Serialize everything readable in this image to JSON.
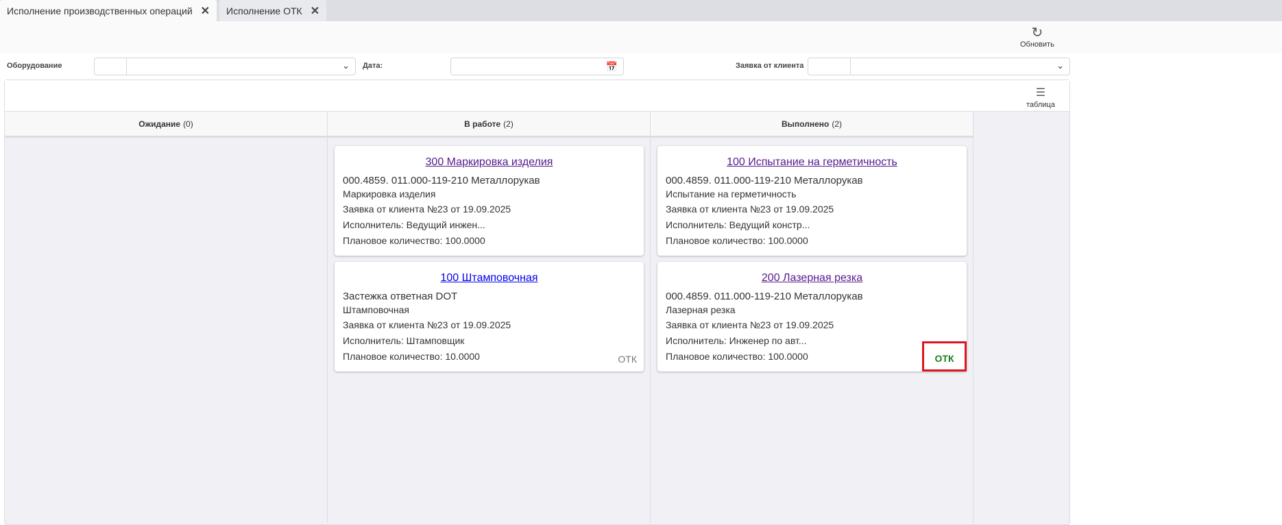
{
  "tabs": [
    {
      "label": "Исполнение производственных операций",
      "active": true
    },
    {
      "label": "Исполнение ОТК",
      "active": false
    }
  ],
  "toolbar": {
    "refresh_label": "Обновить",
    "refresh_icon": "refresh-icon"
  },
  "filters": {
    "equipment_label": "Оборудование",
    "equipment_value": "",
    "date_label": "Дата:",
    "date_value": "",
    "client_order_label": "Заявка от клиента",
    "client_order_value": ""
  },
  "board": {
    "table_view_label": "таблица",
    "table_icon": "list-icon",
    "columns": [
      {
        "title": "Ожидание",
        "count": "(0)",
        "cards": []
      },
      {
        "title": "В работе",
        "count": "(2)",
        "cards": [
          {
            "title": "300 Маркировка изделия",
            "link_color": "#551a8b",
            "item": "000.4859. 011.000-119-210 Металлорукав",
            "operation": "Маркировка изделия",
            "order": "Заявка от клиента №23 от 19.09.2025",
            "executor": "Исполнитель: Ведущий инжен...",
            "quantity": "Плановое количество: 100.0000",
            "otk": ""
          },
          {
            "title": "100 Штамповочная",
            "link_color": "#0000ee",
            "item": "Застежка ответная DOT",
            "operation": "Штамповочная",
            "order": "Заявка от клиента №23 от 19.09.2025",
            "executor": "Исполнитель: Штамповщик",
            "quantity": "Плановое количество: 10.0000",
            "otk": "ОТК",
            "otk_status": "pending"
          }
        ]
      },
      {
        "title": "Выполнено",
        "count": "(2)",
        "cards": [
          {
            "title": "100 Испытание на герметичность",
            "link_color": "#551a8b",
            "item": "000.4859. 011.000-119-210 Металлорукав",
            "operation": "Испытание на герметичность",
            "order": "Заявка от клиента №23 от 19.09.2025",
            "executor": "Исполнитель: Ведущий констр...",
            "quantity": "Плановое количество: 100.0000",
            "otk": ""
          },
          {
            "title": "200 Лазерная резка",
            "link_color": "#551a8b",
            "item": "000.4859. 011.000-119-210 Металлорукав",
            "operation": "Лазерная резка",
            "order": "Заявка от клиента №23 от 19.09.2025",
            "executor": "Исполнитель: Инженер по авт...",
            "quantity": "Плановое количество: 100.0000",
            "otk": "ОТК",
            "otk_status": "passed",
            "otk_color": "#1e7d1e",
            "highlight_color": "#e0141e"
          }
        ]
      }
    ]
  }
}
